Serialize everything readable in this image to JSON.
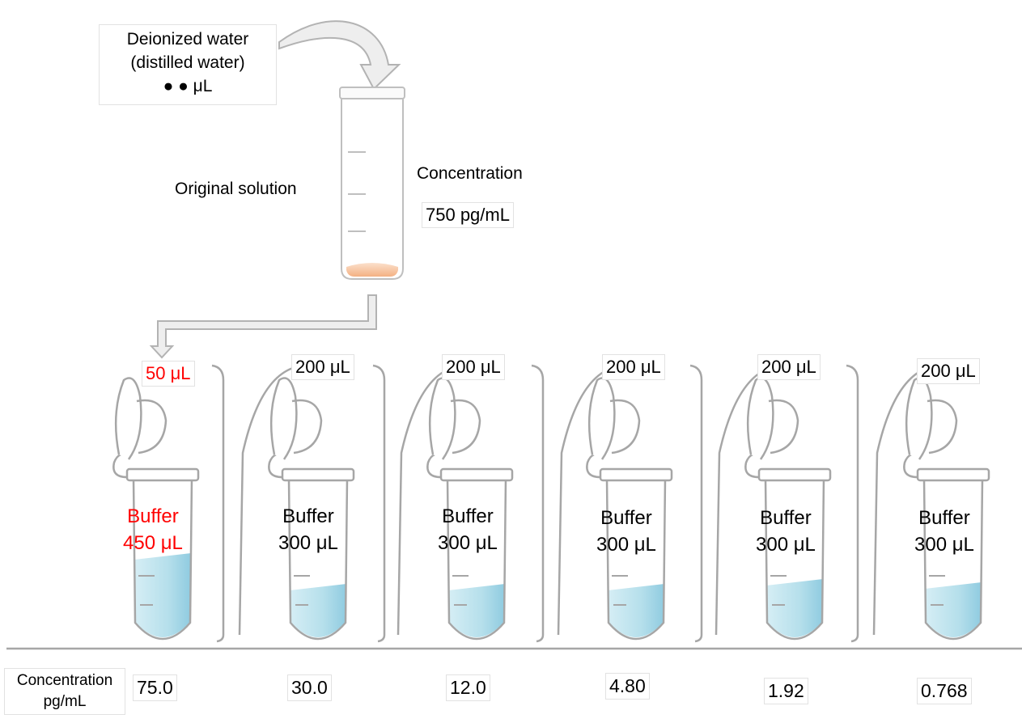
{
  "water": {
    "line1": "Deionized water",
    "line2": "(distilled water)",
    "line3": "● ● μL"
  },
  "original_solution": {
    "label": "Original solution",
    "concentration_label": "Concentration",
    "concentration_value": "750 pg/mL"
  },
  "tubes": [
    {
      "transfer": "50 μL",
      "buffer": "Buffer",
      "buffer_volume": "450 μL",
      "concentration": "75.0",
      "highlight": true
    },
    {
      "transfer": "200 μL",
      "buffer": "Buffer",
      "buffer_volume": "300 μL",
      "concentration": "30.0",
      "highlight": false
    },
    {
      "transfer": "200 μL",
      "buffer": "Buffer",
      "buffer_volume": "300 μL",
      "concentration": "12.0",
      "highlight": false
    },
    {
      "transfer": "200 μL",
      "buffer": "Buffer",
      "buffer_volume": "300 μL",
      "concentration": "4.80",
      "highlight": false
    },
    {
      "transfer": "200 μL",
      "buffer": "Buffer",
      "buffer_volume": "300 μL",
      "concentration": "1.92",
      "highlight": false
    },
    {
      "transfer": "200 μL",
      "buffer": "Buffer",
      "buffer_volume": "300 μL",
      "concentration": "0.768",
      "highlight": false
    }
  ],
  "row_header": {
    "line1": "Concentration",
    "line2": "pg/mL"
  },
  "colors": {
    "highlight": "#ff0000",
    "liquid": "#a9d8e6",
    "sample": "#f4b183",
    "outline": "#a6a6a6"
  }
}
